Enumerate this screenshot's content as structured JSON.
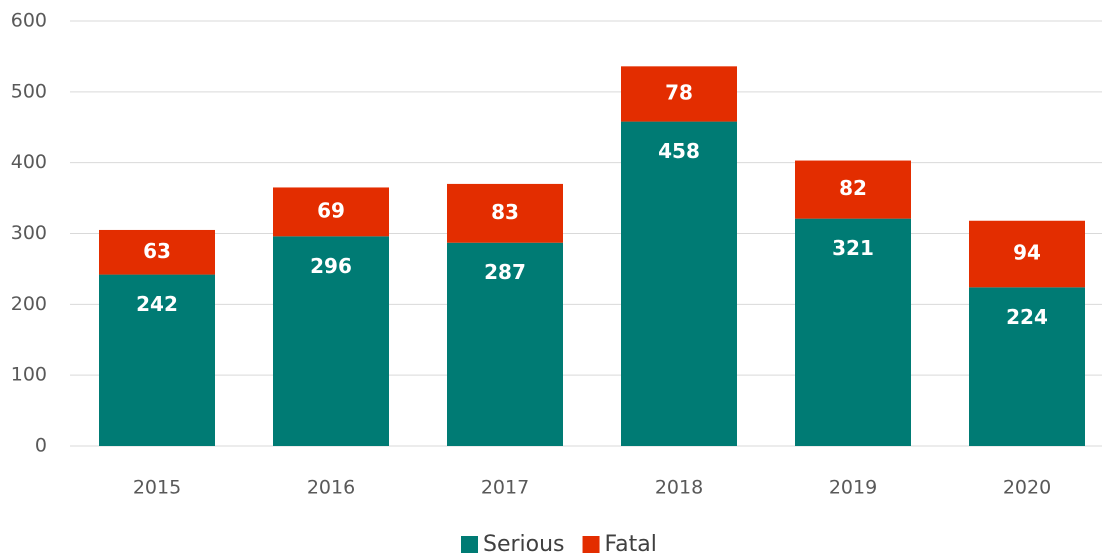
{
  "chart_data": {
    "type": "stacked_bar",
    "categories": [
      "2015",
      "2016",
      "2017",
      "2018",
      "2019",
      "2020"
    ],
    "series": [
      {
        "name": "Serious",
        "color": "#007b74",
        "values": [
          242,
          296,
          287,
          458,
          321,
          224
        ]
      },
      {
        "name": "Fatal",
        "color": "#e32d00",
        "values": [
          63,
          69,
          83,
          78,
          82,
          94
        ]
      }
    ],
    "ylim": [
      0,
      600
    ],
    "yticks": [
      0,
      100,
      200,
      300,
      400,
      500,
      600
    ],
    "grid": true,
    "legend": "bottom"
  }
}
